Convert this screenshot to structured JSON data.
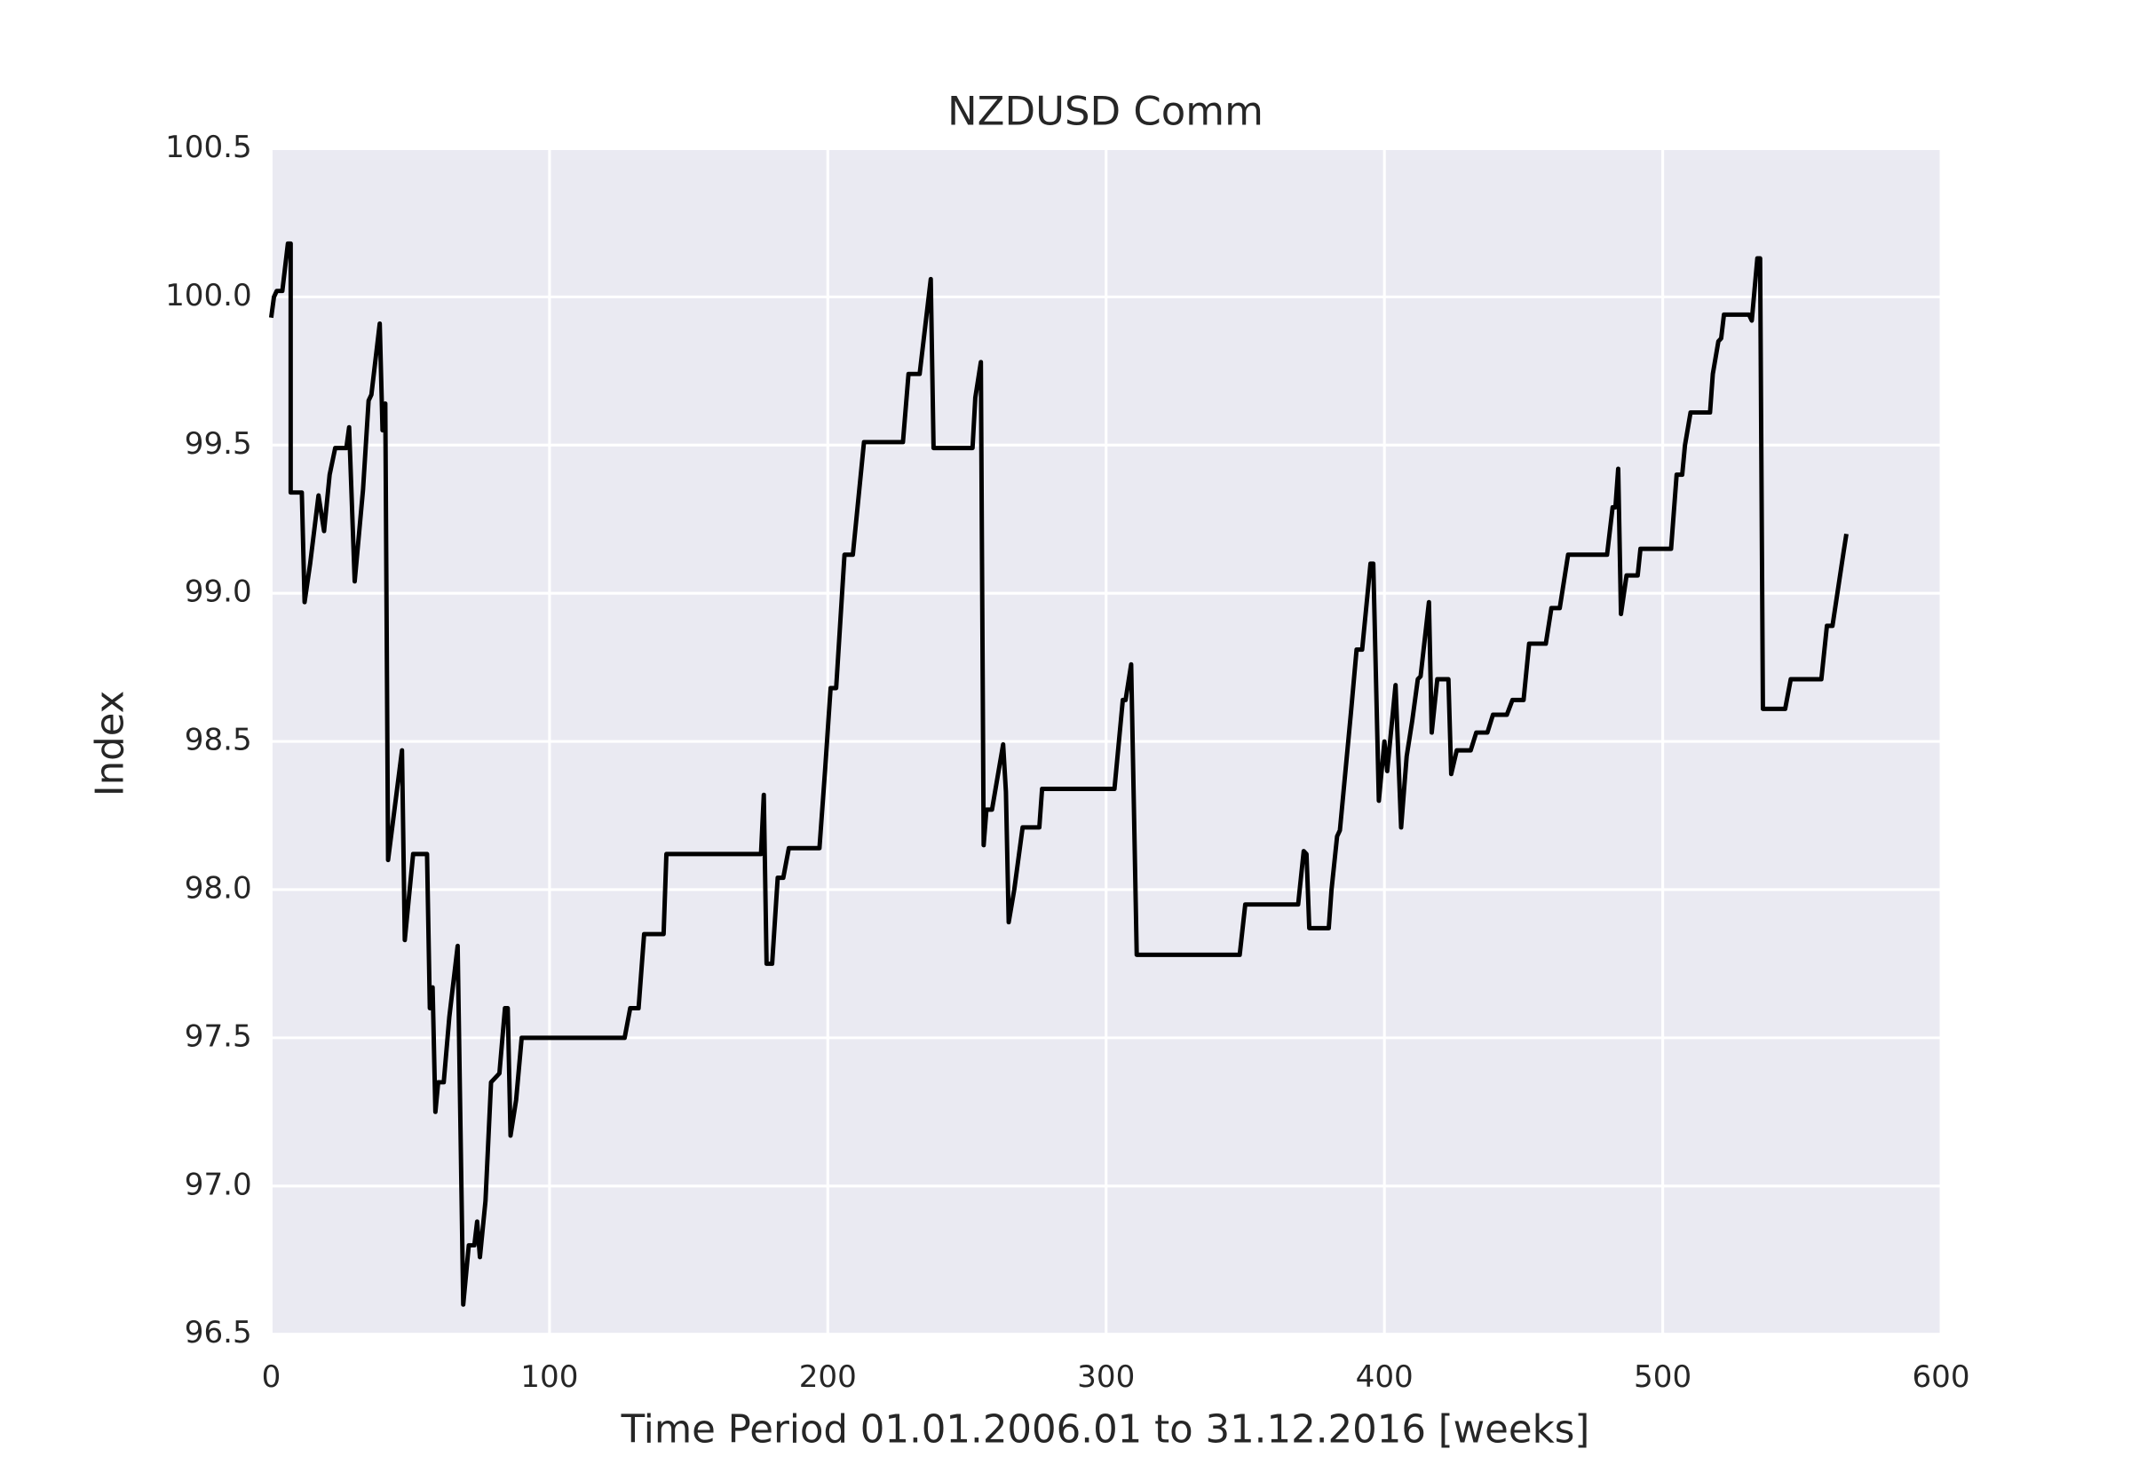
{
  "chart_data": {
    "type": "line",
    "title": "NZDUSD Comm",
    "x_label": "Time Period 01.01.2006.01 to 31.12.2016 [weeks]",
    "y_label": "Index",
    "color": "#000000",
    "background": "#eaeaf2",
    "grid": true,
    "xlim": [
      0,
      600
    ],
    "xticks": [
      0,
      100,
      200,
      300,
      400,
      500,
      600
    ],
    "ylim": [
      96.5,
      100.5
    ],
    "yticks": [
      96.5,
      {
        "value": 97,
        "label": "97.0"
      },
      97.5,
      {
        "value": 98,
        "label": "98.0"
      },
      98.5,
      {
        "value": 99,
        "label": "99.0"
      },
      99.5,
      {
        "value": 100,
        "label": "100.0"
      },
      100.5
    ],
    "x": [
      0,
      1,
      2,
      4,
      6,
      7,
      7,
      11,
      12,
      14,
      17,
      19,
      21,
      23,
      27,
      28,
      30,
      33,
      35,
      36,
      39,
      40,
      41,
      42,
      47,
      48,
      51,
      56,
      57,
      58,
      59,
      60,
      62,
      64,
      67,
      69,
      71,
      73,
      74,
      75,
      77,
      79,
      82,
      84,
      85,
      86,
      88,
      90,
      127,
      129,
      132,
      134,
      141,
      142,
      176,
      177,
      178,
      180,
      182,
      184,
      186,
      197,
      199,
      201,
      203,
      206,
      209,
      213,
      227,
      229,
      233,
      237,
      238,
      252,
      253,
      255,
      256,
      257,
      259,
      261,
      263,
      264,
      265,
      267,
      270,
      276,
      277,
      303,
      306,
      307,
      309,
      311,
      348,
      350,
      369,
      371,
      372,
      373,
      380,
      381,
      383,
      384,
      388,
      390,
      392,
      395,
      396,
      398,
      400,
      401,
      404,
      406,
      408,
      410,
      412,
      413,
      416,
      417,
      419,
      423,
      424,
      426,
      431,
      433,
      437,
      439,
      444,
      446,
      450,
      452,
      458,
      460,
      463,
      466,
      480,
      482,
      483,
      484,
      485,
      487,
      491,
      492,
      503,
      505,
      507,
      508,
      510,
      517,
      518,
      520,
      521,
      522,
      531,
      532,
      534,
      535,
      536,
      544,
      546,
      557,
      559,
      561,
      565,
      566
    ],
    "values": [
      99.93,
      100.0,
      100.02,
      100.02,
      100.18,
      100.18,
      99.34,
      99.34,
      98.97,
      99.1,
      99.33,
      99.21,
      99.4,
      99.49,
      99.49,
      99.56,
      99.04,
      99.35,
      99.65,
      99.67,
      99.91,
      99.55,
      99.64,
      98.1,
      98.47,
      97.83,
      98.12,
      98.12,
      97.6,
      97.67,
      97.25,
      97.35,
      97.35,
      97.57,
      97.81,
      96.6,
      96.8,
      96.8,
      96.88,
      96.76,
      96.95,
      97.35,
      97.38,
      97.6,
      97.6,
      97.17,
      97.29,
      97.5,
      97.5,
      97.6,
      97.6,
      97.85,
      97.85,
      98.12,
      98.12,
      98.32,
      97.75,
      97.75,
      98.04,
      98.04,
      98.14,
      98.14,
      98.4,
      98.68,
      98.68,
      99.13,
      99.13,
      99.51,
      99.51,
      99.74,
      99.74,
      100.06,
      99.49,
      99.49,
      99.66,
      99.78,
      98.15,
      98.27,
      98.27,
      98.38,
      98.49,
      98.33,
      97.89,
      98.0,
      98.21,
      98.21,
      98.34,
      98.34,
      98.64,
      98.64,
      98.76,
      97.78,
      97.78,
      97.95,
      97.95,
      98.13,
      98.12,
      97.87,
      97.87,
      98.0,
      98.18,
      98.2,
      98.6,
      98.81,
      98.81,
      99.1,
      99.1,
      98.3,
      98.5,
      98.4,
      98.69,
      98.21,
      98.45,
      98.57,
      98.71,
      98.72,
      98.97,
      98.53,
      98.71,
      98.71,
      98.39,
      98.47,
      98.47,
      98.53,
      98.53,
      98.59,
      98.59,
      98.64,
      98.64,
      98.83,
      98.83,
      98.95,
      98.95,
      99.13,
      99.13,
      99.29,
      99.29,
      99.42,
      98.93,
      99.06,
      99.06,
      99.15,
      99.15,
      99.4,
      99.4,
      99.5,
      99.61,
      99.61,
      99.74,
      99.85,
      99.86,
      99.94,
      99.94,
      99.92,
      100.13,
      100.13,
      98.61,
      98.61,
      98.71,
      98.71,
      98.89,
      98.89,
      99.14,
      99.2
    ]
  }
}
